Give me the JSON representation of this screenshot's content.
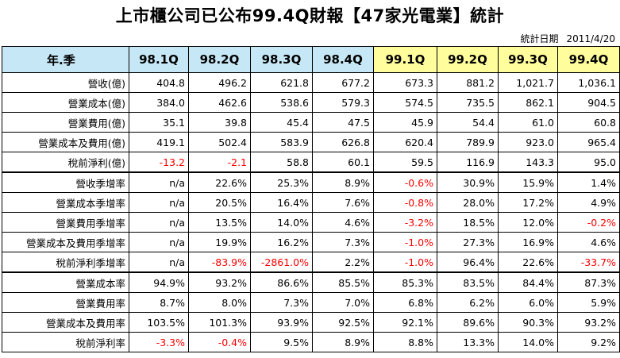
{
  "title": "上市櫃公司已公布99.4Q財報【47家光電業】統計",
  "date_label": "統計日期",
  "date_value": "2011/4/20",
  "header": {
    "label": "年.季",
    "quarters": [
      "98.1Q",
      "98.2Q",
      "98.3Q",
      "98.4Q",
      "99.1Q",
      "99.2Q",
      "99.3Q",
      "99.4Q"
    ]
  },
  "rows": [
    {
      "label": "營收(億)",
      "values": [
        "404.8",
        "496.2",
        "621.8",
        "677.2",
        "673.3",
        "881.2",
        "1,021.7",
        "1,036.1"
      ]
    },
    {
      "label": "營業成本(億)",
      "values": [
        "384.0",
        "462.6",
        "538.6",
        "579.3",
        "574.5",
        "735.5",
        "862.1",
        "904.5"
      ]
    },
    {
      "label": "營業費用(億)",
      "values": [
        "35.1",
        "39.8",
        "45.4",
        "47.5",
        "45.9",
        "54.4",
        "61.0",
        "60.8"
      ]
    },
    {
      "label": "營業成本及費用(億)",
      "values": [
        "419.1",
        "502.4",
        "583.9",
        "626.8",
        "620.4",
        "789.9",
        "923.0",
        "965.4"
      ]
    },
    {
      "label": "稅前淨利(億)",
      "values": [
        "-13.2",
        "-2.1",
        "58.8",
        "60.1",
        "59.5",
        "116.9",
        "143.3",
        "95.0"
      ]
    },
    {
      "label": "營收季增率",
      "values": [
        "n/a",
        "22.6%",
        "25.3%",
        "8.9%",
        "-0.6%",
        "30.9%",
        "15.9%",
        "1.4%"
      ]
    },
    {
      "label": "營業成本季增率",
      "values": [
        "n/a",
        "20.5%",
        "16.4%",
        "7.6%",
        "-0.8%",
        "28.0%",
        "17.2%",
        "4.9%"
      ]
    },
    {
      "label": "營業費用季增率",
      "values": [
        "n/a",
        "13.5%",
        "14.0%",
        "4.6%",
        "-3.2%",
        "18.5%",
        "12.0%",
        "-0.2%"
      ]
    },
    {
      "label": "營業成本及費用季增率",
      "values": [
        "n/a",
        "19.9%",
        "16.2%",
        "7.3%",
        "-1.0%",
        "27.3%",
        "16.9%",
        "4.6%"
      ]
    },
    {
      "label": "稅前淨利季增率",
      "values": [
        "n/a",
        "-83.9%",
        "-2861.0%",
        "2.2%",
        "-1.0%",
        "96.4%",
        "22.6%",
        "-33.7%"
      ]
    },
    {
      "label": "營業成本率",
      "values": [
        "94.9%",
        "93.2%",
        "86.6%",
        "85.5%",
        "85.3%",
        "83.5%",
        "84.4%",
        "87.3%"
      ]
    },
    {
      "label": "營業費用率",
      "values": [
        "8.7%",
        "8.0%",
        "7.3%",
        "7.0%",
        "6.8%",
        "6.2%",
        "6.0%",
        "5.9%"
      ]
    },
    {
      "label": "營業成本及費用率",
      "values": [
        "103.5%",
        "101.3%",
        "93.9%",
        "92.5%",
        "92.1%",
        "89.6%",
        "90.3%",
        "93.2%"
      ]
    },
    {
      "label": "稅前淨利率",
      "values": [
        "-3.3%",
        "-0.4%",
        "9.5%",
        "8.9%",
        "8.8%",
        "13.3%",
        "14.0%",
        "9.2%"
      ]
    }
  ],
  "colors": {
    "header_blue": "#c6e7f5",
    "header_yellow": "#fffd9c",
    "negative": "#ff0000"
  }
}
